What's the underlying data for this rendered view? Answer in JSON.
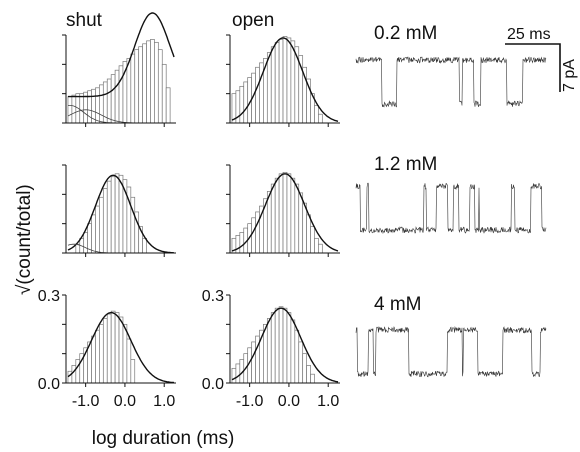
{
  "figure": {
    "column_titles": [
      "shut",
      "open"
    ],
    "y_axis_label": "√(count/total)",
    "x_axis_label": "log duration (ms)",
    "scale_bar": {
      "time_label": "25 ms",
      "current_label": "7 pA"
    },
    "concentrations": [
      "0.2 mM",
      "1.2 mM",
      "4 mM"
    ]
  },
  "chart_data": [
    {
      "type": "bar",
      "title": "shut",
      "row": 0,
      "col": 0,
      "concentration": "0.2 mM",
      "x_range": [
        -1.5,
        1.3
      ],
      "y_range": [
        0,
        0.3
      ],
      "show_tick_labels": false,
      "bins_log_ms": [
        -1.4,
        -1.3,
        -1.2,
        -1.1,
        -1.0,
        -0.9,
        -0.8,
        -0.7,
        -0.6,
        -0.5,
        -0.4,
        -0.3,
        -0.2,
        -0.1,
        0.0,
        0.1,
        0.2,
        0.3,
        0.4,
        0.5,
        0.6,
        0.7,
        0.8,
        0.9,
        1.0,
        1.1
      ],
      "bin_width": 0.1,
      "values": [
        0.09,
        0.095,
        0.1,
        0.1,
        0.105,
        0.11,
        0.115,
        0.12,
        0.13,
        0.14,
        0.15,
        0.165,
        0.18,
        0.195,
        0.21,
        0.22,
        0.235,
        0.25,
        0.26,
        0.27,
        0.28,
        0.285,
        0.275,
        0.25,
        0.2,
        0.12
      ],
      "fit": {
        "mu": 0.7,
        "sigma": 0.45,
        "amp": 0.285,
        "baseline": 0.09
      },
      "components": [
        {
          "mu": -1.4,
          "sigma": 0.35,
          "amp": 0.06
        },
        {
          "mu": -1.0,
          "sigma": 0.4,
          "amp": 0.045
        }
      ]
    },
    {
      "type": "bar",
      "title": "open",
      "row": 0,
      "col": 1,
      "concentration": "0.2 mM",
      "x_range": [
        -1.5,
        1.3
      ],
      "y_range": [
        0,
        0.3
      ],
      "show_tick_labels": false,
      "bins_log_ms": [
        -1.4,
        -1.3,
        -1.2,
        -1.1,
        -1.0,
        -0.9,
        -0.8,
        -0.7,
        -0.6,
        -0.5,
        -0.4,
        -0.3,
        -0.2,
        -0.1,
        0.0,
        0.1,
        0.2,
        0.3,
        0.4,
        0.5,
        0.6,
        0.7,
        0.8
      ],
      "bin_width": 0.1,
      "values": [
        0.1,
        0.11,
        0.125,
        0.14,
        0.155,
        0.17,
        0.19,
        0.205,
        0.22,
        0.24,
        0.26,
        0.275,
        0.285,
        0.295,
        0.29,
        0.28,
        0.26,
        0.23,
        0.19,
        0.15,
        0.1,
        0.06,
        0.03
      ],
      "fit": {
        "mu": -0.15,
        "sigma": 0.5,
        "amp": 0.29,
        "baseline": 0.0
      },
      "components": []
    },
    {
      "type": "bar",
      "title": "shut",
      "row": 1,
      "col": 0,
      "concentration": "1.2 mM",
      "x_range": [
        -1.5,
        1.3
      ],
      "y_range": [
        0,
        0.3
      ],
      "show_tick_labels": false,
      "bins_log_ms": [
        -1.2,
        -1.1,
        -1.0,
        -0.9,
        -0.8,
        -0.7,
        -0.6,
        -0.5,
        -0.4,
        -0.3,
        -0.2,
        -0.1,
        0.0,
        0.1,
        0.2,
        0.3,
        0.4,
        0.5
      ],
      "bin_width": 0.1,
      "values": [
        0.03,
        0.05,
        0.07,
        0.1,
        0.13,
        0.16,
        0.19,
        0.22,
        0.245,
        0.26,
        0.27,
        0.265,
        0.25,
        0.225,
        0.19,
        0.14,
        0.09,
        0.05
      ],
      "fit": {
        "mu": -0.3,
        "sigma": 0.45,
        "amp": 0.265,
        "baseline": 0.0
      },
      "components": [
        {
          "mu": -1.3,
          "sigma": 0.3,
          "amp": 0.03
        }
      ]
    },
    {
      "type": "bar",
      "title": "open",
      "row": 1,
      "col": 1,
      "concentration": "1.2 mM",
      "x_range": [
        -1.5,
        1.3
      ],
      "y_range": [
        0,
        0.3
      ],
      "show_tick_labels": false,
      "bins_log_ms": [
        -1.4,
        -1.3,
        -1.2,
        -1.1,
        -1.0,
        -0.9,
        -0.8,
        -0.7,
        -0.6,
        -0.5,
        -0.4,
        -0.3,
        -0.2,
        -0.1,
        0.0,
        0.1,
        0.2,
        0.3,
        0.4,
        0.5,
        0.6,
        0.7,
        0.8
      ],
      "bin_width": 0.1,
      "values": [
        0.05,
        0.06,
        0.07,
        0.085,
        0.1,
        0.12,
        0.14,
        0.16,
        0.185,
        0.21,
        0.235,
        0.255,
        0.27,
        0.275,
        0.27,
        0.255,
        0.235,
        0.205,
        0.17,
        0.13,
        0.09,
        0.05,
        0.03
      ],
      "fit": {
        "mu": -0.1,
        "sigma": 0.5,
        "amp": 0.27,
        "baseline": 0.0
      },
      "components": []
    },
    {
      "type": "bar",
      "title": "shut",
      "row": 2,
      "col": 0,
      "concentration": "4 mM",
      "x_range": [
        -1.5,
        1.3
      ],
      "y_range": [
        0,
        0.3
      ],
      "show_tick_labels": true,
      "y_ticks": [
        0.0,
        0.3
      ],
      "y_tick_labels": [
        "0.0",
        "0.3"
      ],
      "x_ticks": [
        -1.0,
        0.0,
        1.0
      ],
      "x_tick_labels": [
        "-1.0",
        "0.0",
        "1.0"
      ],
      "bins_log_ms": [
        -1.4,
        -1.3,
        -1.2,
        -1.1,
        -1.0,
        -0.9,
        -0.8,
        -0.7,
        -0.6,
        -0.5,
        -0.4,
        -0.3,
        -0.2,
        -0.1,
        0.0,
        0.1,
        0.2
      ],
      "bin_width": 0.1,
      "values": [
        0.04,
        0.06,
        0.08,
        0.1,
        0.12,
        0.14,
        0.16,
        0.18,
        0.2,
        0.22,
        0.235,
        0.245,
        0.24,
        0.225,
        0.2,
        0.15,
        0.08
      ],
      "fit": {
        "mu": -0.35,
        "sigma": 0.5,
        "amp": 0.24,
        "baseline": 0.0
      },
      "components": []
    },
    {
      "type": "bar",
      "title": "open",
      "row": 2,
      "col": 1,
      "concentration": "4 mM",
      "x_range": [
        -1.5,
        1.3
      ],
      "y_range": [
        0,
        0.3
      ],
      "show_tick_labels": true,
      "y_ticks": [
        0.0,
        0.3
      ],
      "y_tick_labels": [
        "0.0",
        "0.3"
      ],
      "x_ticks": [
        -1.0,
        0.0,
        1.0
      ],
      "x_tick_labels": [
        "-1.0",
        "0.0",
        "1.0"
      ],
      "bins_log_ms": [
        -1.4,
        -1.3,
        -1.2,
        -1.1,
        -1.0,
        -0.9,
        -0.8,
        -0.7,
        -0.6,
        -0.5,
        -0.4,
        -0.3,
        -0.2,
        -0.1,
        0.0,
        0.1,
        0.2,
        0.3,
        0.4,
        0.5,
        0.6
      ],
      "bin_width": 0.1,
      "values": [
        0.05,
        0.065,
        0.08,
        0.1,
        0.12,
        0.14,
        0.16,
        0.18,
        0.2,
        0.22,
        0.24,
        0.255,
        0.26,
        0.255,
        0.24,
        0.215,
        0.18,
        0.14,
        0.1,
        0.06,
        0.03
      ],
      "fit": {
        "mu": -0.2,
        "sigma": 0.5,
        "amp": 0.255,
        "baseline": 0.0
      },
      "components": []
    }
  ],
  "traces": [
    {
      "concentration": "0.2 mM",
      "open_probability": 0.05,
      "baseline_noise": 3,
      "open_depth_pA": 7
    },
    {
      "concentration": "1.2 mM",
      "open_probability": 0.6,
      "baseline_noise": 3,
      "open_depth_pA": 7
    },
    {
      "concentration": "4 mM",
      "open_probability": 0.75,
      "baseline_noise": 3,
      "open_depth_pA": 7
    }
  ]
}
